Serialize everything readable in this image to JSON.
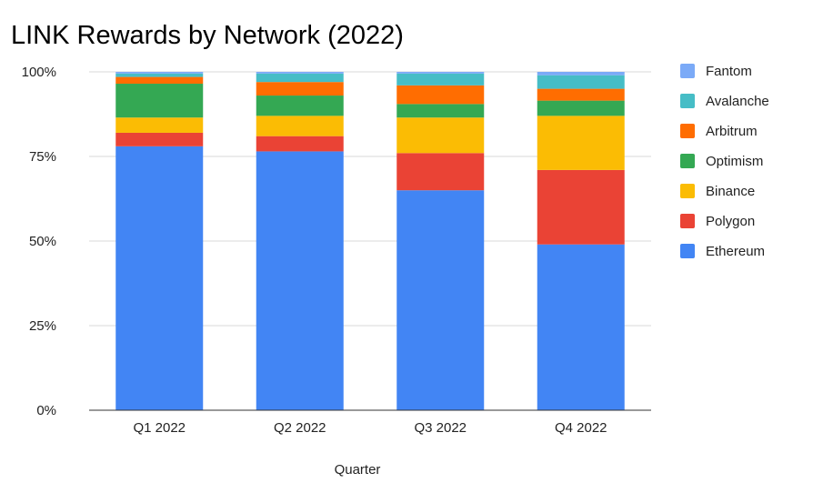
{
  "chart_data": {
    "type": "bar",
    "stacked": true,
    "normalized": true,
    "title": "LINK Rewards by Network (2022)",
    "xlabel": "Quarter",
    "ylabel": "",
    "ylim": [
      0,
      100
    ],
    "y_ticks": [
      "0%",
      "25%",
      "50%",
      "75%",
      "100%"
    ],
    "grid": true,
    "legend_position": "right",
    "categories": [
      "Q1 2022",
      "Q2 2022",
      "Q3 2022",
      "Q4 2022"
    ],
    "series": [
      {
        "name": "Ethereum",
        "color": "#4285f4",
        "values": [
          78,
          76.5,
          65,
          49
        ]
      },
      {
        "name": "Polygon",
        "color": "#ea4335",
        "values": [
          4,
          4.5,
          11,
          22
        ]
      },
      {
        "name": "Binance",
        "color": "#fbbc04",
        "values": [
          4.5,
          6,
          10.5,
          16
        ]
      },
      {
        "name": "Optimism",
        "color": "#34a853",
        "values": [
          10,
          6,
          4,
          4.5
        ]
      },
      {
        "name": "Arbitrum",
        "color": "#ff6d01",
        "values": [
          2,
          4,
          5.5,
          3.5
        ]
      },
      {
        "name": "Avalanche",
        "color": "#46bdc6",
        "values": [
          1,
          2.5,
          3.5,
          4
        ]
      },
      {
        "name": "Fantom",
        "color": "#7baaf7",
        "values": [
          0.5,
          0.5,
          0.5,
          1
        ]
      }
    ]
  }
}
